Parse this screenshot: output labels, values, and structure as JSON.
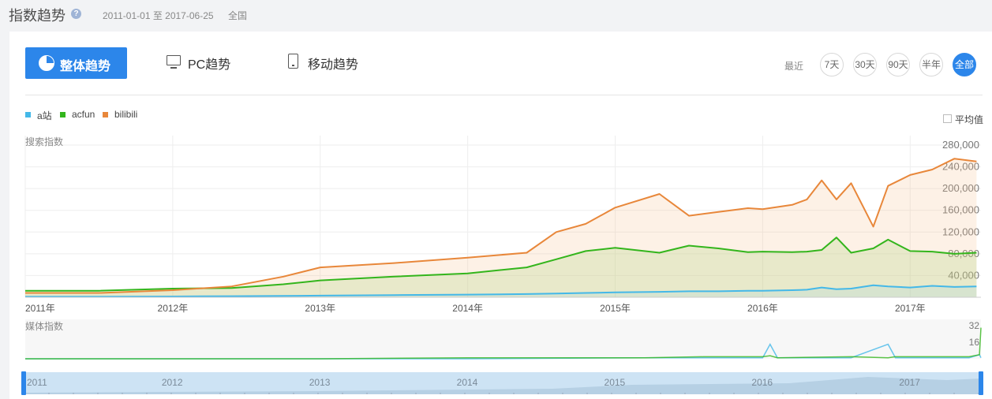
{
  "header": {
    "title": "指数趋势",
    "help_icon": "?",
    "date_range": "2011-01-01 至 2017-06-25",
    "region": "全国"
  },
  "tabs": {
    "overall": "整体趋势",
    "pc": "PC趋势",
    "mobile": "移动趋势"
  },
  "range": {
    "label": "最近",
    "options": [
      "7天",
      "30天",
      "90天",
      "半年",
      "全部"
    ],
    "active": "全部"
  },
  "average_toggle": "平均值",
  "colors": {
    "accent": "#2c86ea",
    "a_site": "#44b8e8",
    "acfun": "#33b51c",
    "bilibili": "#e8873a"
  },
  "chart_data": [
    {
      "type": "line",
      "title": "搜索指数",
      "x_ticks": [
        "2011年",
        "2012年",
        "2013年",
        "2014年",
        "2015年",
        "2016年",
        "2017年"
      ],
      "y_ticks": [
        "280,000",
        "240,000",
        "200,000",
        "160,000",
        "120,000",
        "80,000",
        "40,000"
      ],
      "ylim": [
        0,
        280000
      ],
      "x_unit": "year",
      "x": [
        2011.0,
        2011.5,
        2012.0,
        2012.4,
        2012.75,
        2013.0,
        2013.5,
        2014.0,
        2014.4,
        2014.6,
        2014.8,
        2015.0,
        2015.3,
        2015.5,
        2015.7,
        2015.9,
        2016.0,
        2016.2,
        2016.3,
        2016.4,
        2016.5,
        2016.6,
        2016.75,
        2016.85,
        2017.0,
        2017.15,
        2017.3,
        2017.45
      ],
      "series": [
        {
          "name": "a站",
          "color": "#44b8e8",
          "values": [
            1000,
            1000,
            1500,
            2000,
            2500,
            3000,
            4000,
            5000,
            6000,
            7000,
            8000,
            9000,
            10000,
            11000,
            11000,
            12000,
            12000,
            13000,
            14000,
            18000,
            15000,
            16000,
            22000,
            20000,
            18000,
            21000,
            19000,
            20000
          ]
        },
        {
          "name": "acfun",
          "color": "#33b51c",
          "values": [
            12000,
            12000,
            16000,
            17000,
            24000,
            31000,
            38000,
            44000,
            55000,
            70000,
            85000,
            91000,
            82000,
            95000,
            90000,
            83000,
            84000,
            83000,
            84000,
            87000,
            110000,
            82000,
            90000,
            106000,
            85000,
            84000,
            80000,
            82000
          ]
        },
        {
          "name": "bilibili",
          "color": "#e8873a",
          "values": [
            8000,
            8000,
            13000,
            20000,
            38000,
            55000,
            63000,
            73000,
            82000,
            120000,
            135000,
            165000,
            190000,
            150000,
            157000,
            164000,
            162000,
            170000,
            180000,
            215000,
            180000,
            210000,
            130000,
            205000,
            225000,
            235000,
            255000,
            250000
          ]
        }
      ]
    },
    {
      "type": "line",
      "title": "媒体指数",
      "y_ticks": [
        "32",
        "16"
      ],
      "ylim": [
        0,
        32
      ],
      "x_unit": "year",
      "x": [
        2011.0,
        2013.0,
        2014.0,
        2015.2,
        2015.6,
        2016.0,
        2016.05,
        2016.1,
        2016.6,
        2016.85,
        2016.9,
        2017.4,
        2017.47,
        2017.48
      ],
      "series": [
        {
          "name": "a站",
          "color": "#44b8e8",
          "values": [
            0,
            0,
            0,
            1,
            1,
            1,
            14,
            1,
            1,
            14,
            1,
            1,
            4,
            1
          ]
        },
        {
          "name": "acfun",
          "color": "#33b51c",
          "values": [
            0,
            0,
            1,
            1,
            2,
            2,
            3,
            1,
            2,
            1,
            2,
            2,
            4,
            30
          ]
        }
      ]
    },
    {
      "type": "area",
      "title": "",
      "x_ticks": [
        "2011",
        "2012",
        "2013",
        "2014",
        "2015",
        "2016",
        "2017"
      ]
    }
  ]
}
